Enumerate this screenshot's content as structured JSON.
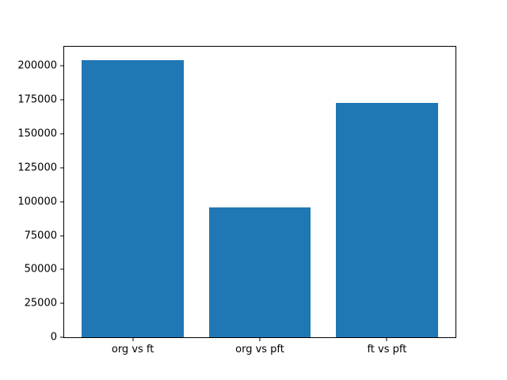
{
  "chart_data": {
    "type": "bar",
    "categories": [
      "org vs ft",
      "org vs pft",
      "ft vs pft"
    ],
    "values": [
      204000,
      95500,
      173000
    ],
    "title": "",
    "xlabel": "",
    "ylabel": "",
    "ylim": [
      0,
      214200
    ],
    "xlim": [
      -0.54,
      2.54
    ],
    "bar_width": 0.8,
    "yticks": [
      0,
      25000,
      50000,
      75000,
      100000,
      125000,
      150000,
      175000,
      200000
    ],
    "grid": false,
    "legend_position": "none",
    "colors": {
      "bar": "#1f77b4",
      "axis": "#000000",
      "background": "#ffffff"
    }
  }
}
